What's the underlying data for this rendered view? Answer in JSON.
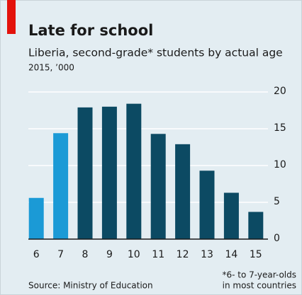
{
  "chart_data": {
    "type": "bar",
    "title": "Late for school",
    "subtitle": "Liberia, second-grade* students by actual age",
    "unit_note": "2015, ’000",
    "categories": [
      "6",
      "7",
      "8",
      "9",
      "10",
      "11",
      "12",
      "13",
      "14",
      "15"
    ],
    "values": [
      5.6,
      14.4,
      17.9,
      18.0,
      18.4,
      14.3,
      12.9,
      9.3,
      6.3,
      3.7
    ],
    "colors": [
      "#1b9ad6",
      "#1b9ad6",
      "#0c4a63",
      "#0c4a63",
      "#0c4a63",
      "#0c4a63",
      "#0c4a63",
      "#0c4a63",
      "#0c4a63",
      "#0c4a63"
    ],
    "ylim": [
      0,
      20
    ],
    "yticks": [
      0,
      5,
      10,
      15,
      20
    ],
    "grid": true,
    "source": "Source: Ministry of Education",
    "footnote": [
      "*6- to 7-year-olds",
      "in most countries"
    ]
  }
}
